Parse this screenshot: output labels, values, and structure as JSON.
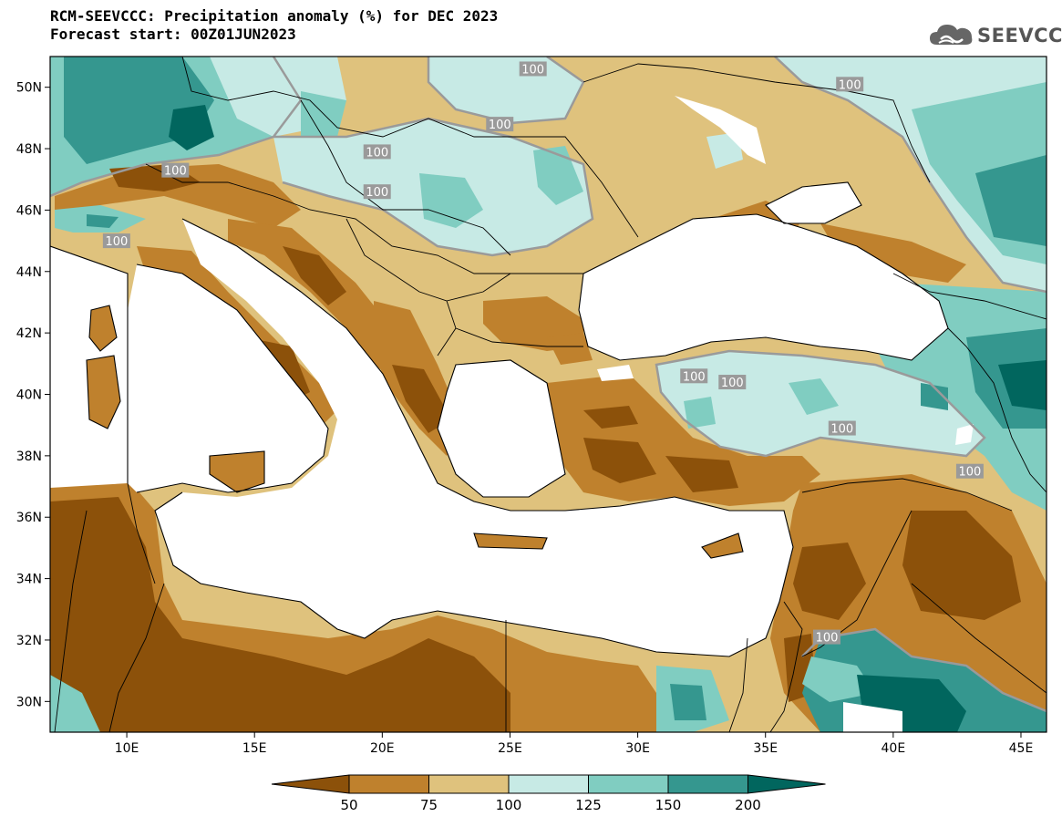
{
  "title_line1": "RCM-SEEVCCC: Precipitation anomaly (%) for DEC 2023",
  "title_line2": "Forecast start: 00Z01JUN2023",
  "logo": {
    "text": "SEEVCCC",
    "icon": "cloud-logo-icon"
  },
  "map": {
    "lon_range": [
      7,
      46
    ],
    "lat_range": [
      29,
      51
    ],
    "lon_ticks": [
      {
        "value": 10,
        "label": "10E"
      },
      {
        "value": 15,
        "label": "15E"
      },
      {
        "value": 20,
        "label": "20E"
      },
      {
        "value": 25,
        "label": "25E"
      },
      {
        "value": 30,
        "label": "30E"
      },
      {
        "value": 35,
        "label": "35E"
      },
      {
        "value": 40,
        "label": "40E"
      },
      {
        "value": 45,
        "label": "45E"
      }
    ],
    "lat_ticks": [
      {
        "value": 30,
        "label": "30N"
      },
      {
        "value": 32,
        "label": "32N"
      },
      {
        "value": 34,
        "label": "34N"
      },
      {
        "value": 36,
        "label": "36N"
      },
      {
        "value": 38,
        "label": "38N"
      },
      {
        "value": 40,
        "label": "40N"
      },
      {
        "value": 42,
        "label": "42N"
      },
      {
        "value": 44,
        "label": "44N"
      },
      {
        "value": 46,
        "label": "46N"
      },
      {
        "value": 48,
        "label": "48N"
      },
      {
        "value": 50,
        "label": "50N"
      }
    ],
    "contour_labels": [
      {
        "text": "100",
        "lon": 25.9,
        "lat": 50.6
      },
      {
        "text": "100",
        "lon": 38.3,
        "lat": 50.1
      },
      {
        "text": "100",
        "lon": 24.6,
        "lat": 48.8
      },
      {
        "text": "100",
        "lon": 19.8,
        "lat": 47.9
      },
      {
        "text": "100",
        "lon": 11.9,
        "lat": 47.3
      },
      {
        "text": "100",
        "lon": 19.8,
        "lat": 46.6
      },
      {
        "text": "100",
        "lon": 9.6,
        "lat": 45.0
      },
      {
        "text": "100",
        "lon": 32.2,
        "lat": 40.6
      },
      {
        "text": "100",
        "lon": 33.7,
        "lat": 40.4
      },
      {
        "text": "100",
        "lon": 38.0,
        "lat": 38.9
      },
      {
        "text": "100",
        "lon": 43.0,
        "lat": 37.5
      },
      {
        "text": "100",
        "lon": 37.4,
        "lat": 32.1
      }
    ]
  },
  "colorbar": {
    "colors": [
      "#8c510a",
      "#bf812d",
      "#dfc27d",
      "#c7eae5",
      "#80cdc1",
      "#35978f",
      "#01665e"
    ],
    "labels": [
      "50",
      "75",
      "100",
      "125",
      "150",
      "200"
    ]
  },
  "colors": {
    "ocean": "#ffffff",
    "coast": "#000000",
    "borders": "#000000",
    "contour_100": "#9a9a9a"
  }
}
